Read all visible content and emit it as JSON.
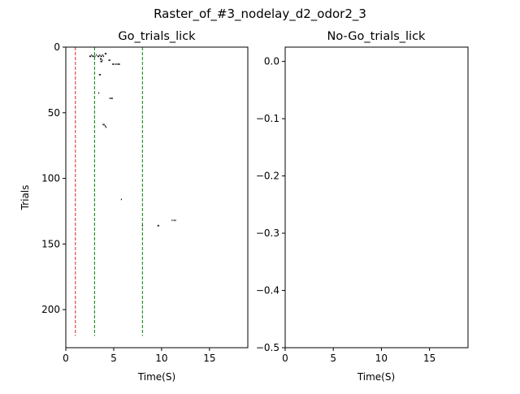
{
  "title": "Raster_of_#3_nodelay_d2_odor2_3",
  "colors": {
    "event": "#000000",
    "line_red": "#d62728",
    "line_green": "#008000"
  },
  "chart_data": [
    {
      "type": "raster",
      "title": "Go_trials_lick",
      "xlabel": "Time(S)",
      "ylabel": "Trials",
      "xlim": [
        0,
        19
      ],
      "ylim": [
        229,
        0
      ],
      "y_inverted": true,
      "xticks": [
        0,
        5,
        10,
        15
      ],
      "yticks": [
        0,
        50,
        100,
        150,
        200
      ],
      "vlines": [
        {
          "x": 1,
          "color": "red",
          "style": "dashed",
          "y_range": [
            0,
            220
          ]
        },
        {
          "x": 3,
          "color": "green",
          "style": "dashed",
          "y_range": [
            0,
            220
          ]
        },
        {
          "x": 8,
          "color": "green",
          "style": "dashed",
          "y_range": [
            0,
            220
          ]
        }
      ],
      "events": [
        [
          2.5,
          7
        ],
        [
          2.6,
          7
        ],
        [
          2.7,
          6
        ],
        [
          2.8,
          7
        ],
        [
          2.9,
          7
        ],
        [
          3.05,
          7
        ],
        [
          3.2,
          6
        ],
        [
          3.35,
          7
        ],
        [
          3.45,
          7
        ],
        [
          3.55,
          6
        ],
        [
          3.65,
          7
        ],
        [
          3.75,
          7
        ],
        [
          3.85,
          6
        ],
        [
          3.95,
          7
        ],
        [
          4.1,
          5
        ],
        [
          4.2,
          5
        ],
        [
          3.6,
          9
        ],
        [
          3.7,
          9
        ],
        [
          3.8,
          10
        ],
        [
          3.65,
          11
        ],
        [
          3.75,
          11
        ],
        [
          4.5,
          10
        ],
        [
          4.6,
          10
        ],
        [
          4.9,
          13
        ],
        [
          5.0,
          13
        ],
        [
          5.2,
          13
        ],
        [
          5.35,
          13
        ],
        [
          5.5,
          13
        ],
        [
          5.6,
          13
        ],
        [
          3.5,
          21
        ],
        [
          3.6,
          21
        ],
        [
          3.45,
          35
        ],
        [
          4.6,
          39
        ],
        [
          4.75,
          39
        ],
        [
          4.85,
          39
        ],
        [
          3.9,
          59
        ],
        [
          4.0,
          59
        ],
        [
          4.1,
          60
        ],
        [
          4.2,
          61
        ],
        [
          5.8,
          116
        ],
        [
          9.6,
          136
        ],
        [
          9.7,
          136
        ],
        [
          11.1,
          132
        ],
        [
          11.3,
          132
        ],
        [
          11.45,
          132
        ],
        [
          8.0,
          136
        ]
      ]
    },
    {
      "type": "raster",
      "title": "No-Go_trials_lick",
      "xlabel": "Time(S)",
      "xlim": [
        0,
        19
      ],
      "ylim": [
        -0.5,
        0.025
      ],
      "y_inverted": true,
      "xticks": [
        0,
        5,
        10,
        15
      ],
      "yticks": [
        0.0,
        -0.1,
        -0.2,
        -0.3,
        -0.4,
        -0.5
      ],
      "ytick_labels": [
        "0.0",
        "−0.1",
        "−0.2",
        "−0.3",
        "−0.4",
        "−0.5"
      ],
      "events": []
    }
  ]
}
